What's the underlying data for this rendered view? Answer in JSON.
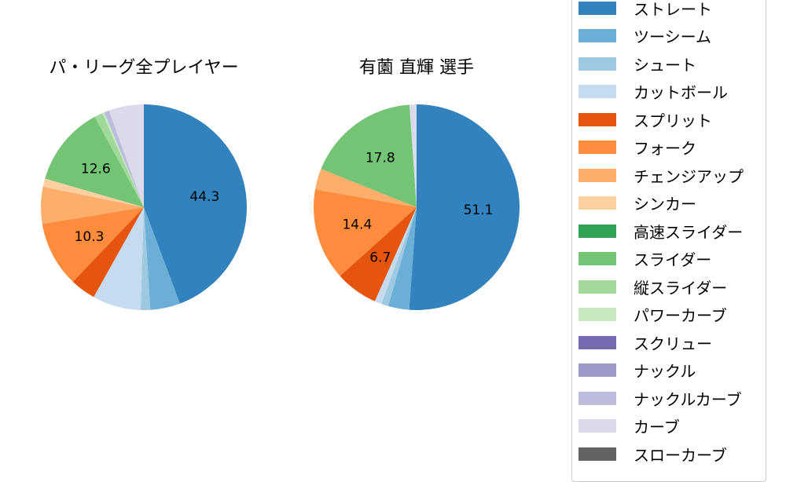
{
  "chart_data": [
    {
      "type": "pie",
      "title": "パ・リーグ全プレイヤー",
      "slices": [
        {
          "category": "ストレート",
          "value": 44.3,
          "label": "44.3"
        },
        {
          "category": "ツーシーム",
          "value": 4.7,
          "label": ""
        },
        {
          "category": "シュート",
          "value": 1.5,
          "label": ""
        },
        {
          "category": "カットボール",
          "value": 7.6,
          "label": ""
        },
        {
          "category": "スプリット",
          "value": 4.0,
          "label": ""
        },
        {
          "category": "フォーク",
          "value": 10.3,
          "label": "10.3"
        },
        {
          "category": "チェンジアップ",
          "value": 5.8,
          "label": ""
        },
        {
          "category": "シンカー",
          "value": 1.3,
          "label": ""
        },
        {
          "category": "スライダー",
          "value": 12.6,
          "label": "12.6"
        },
        {
          "category": "縦スライダー",
          "value": 1.3,
          "label": ""
        },
        {
          "category": "パワーカーブ",
          "value": 0.3,
          "label": ""
        },
        {
          "category": "ナックルカーブ",
          "value": 0.8,
          "label": ""
        },
        {
          "category": "カーブ",
          "value": 5.5,
          "label": ""
        }
      ]
    },
    {
      "type": "pie",
      "title": "有薗 直輝  選手",
      "slices": [
        {
          "category": "ストレート",
          "value": 51.1,
          "label": "51.1"
        },
        {
          "category": "ツーシーム",
          "value": 3.3,
          "label": ""
        },
        {
          "category": "シュート",
          "value": 1.1,
          "label": ""
        },
        {
          "category": "カットボール",
          "value": 1.1,
          "label": ""
        },
        {
          "category": "スプリット",
          "value": 6.7,
          "label": "6.7"
        },
        {
          "category": "フォーク",
          "value": 14.4,
          "label": "14.4"
        },
        {
          "category": "チェンジアップ",
          "value": 3.3,
          "label": ""
        },
        {
          "category": "スライダー",
          "value": 17.8,
          "label": "17.8"
        },
        {
          "category": "カーブ",
          "value": 1.1,
          "label": ""
        }
      ]
    }
  ],
  "legend": {
    "placement": "right",
    "items": [
      {
        "label": "ストレート",
        "color": "#3182bd"
      },
      {
        "label": "ツーシーム",
        "color": "#6baed6"
      },
      {
        "label": "シュート",
        "color": "#9ecae1"
      },
      {
        "label": "カットボール",
        "color": "#c6dbef"
      },
      {
        "label": "スプリット",
        "color": "#e6550d"
      },
      {
        "label": "フォーク",
        "color": "#fd8d3c"
      },
      {
        "label": "チェンジアップ",
        "color": "#fdae6b"
      },
      {
        "label": "シンカー",
        "color": "#fdd0a2"
      },
      {
        "label": "高速スライダー",
        "color": "#31a354"
      },
      {
        "label": "スライダー",
        "color": "#74c476"
      },
      {
        "label": "縦スライダー",
        "color": "#a1d99b"
      },
      {
        "label": "パワーカーブ",
        "color": "#c7e9c0"
      },
      {
        "label": "スクリュー",
        "color": "#756bb1"
      },
      {
        "label": "ナックル",
        "color": "#9e9ac8"
      },
      {
        "label": "ナックルカーブ",
        "color": "#bcbddc"
      },
      {
        "label": "カーブ",
        "color": "#dadaeb"
      },
      {
        "label": "スローカーブ",
        "color": "#636363"
      }
    ]
  }
}
